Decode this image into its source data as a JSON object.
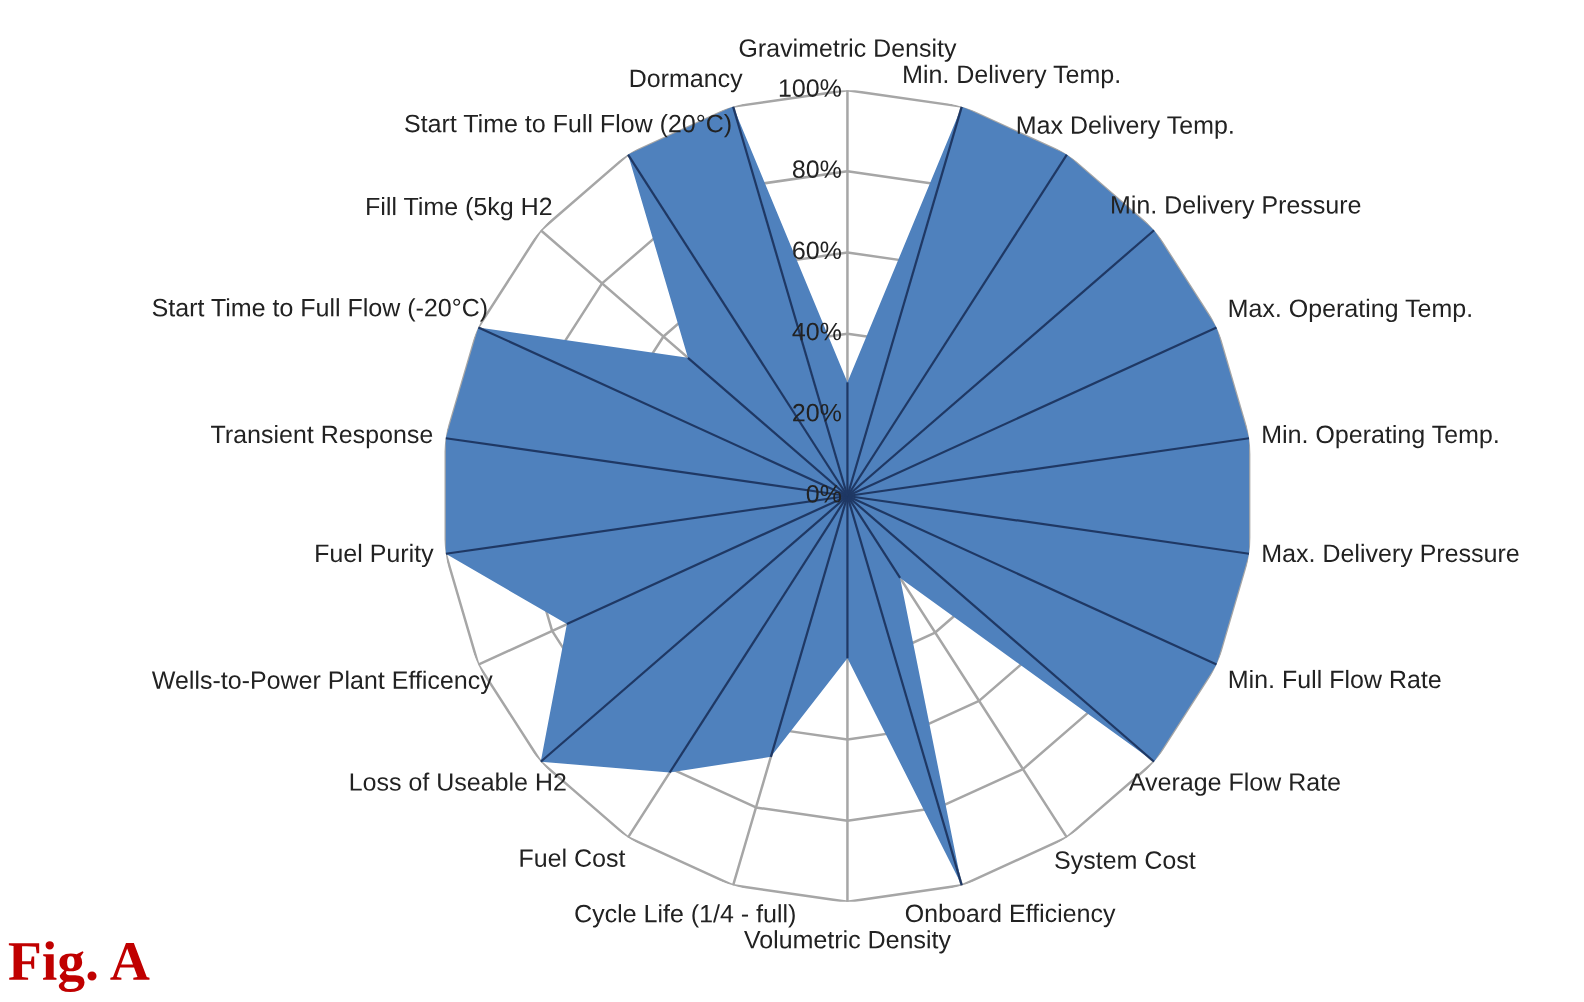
{
  "chart_data": {
    "type": "radar",
    "categories": [
      "Gravimetric Density",
      "Min. Delivery Temp.",
      "Max Delivery Temp.",
      "Min. Delivery Pressure",
      "Max. Operating Temp.",
      "Min. Operating Temp.",
      "Max. Delivery Pressure",
      "Min. Full Flow Rate",
      "Average Flow Rate",
      "System Cost",
      "Onboard Efficiency",
      "Volumetric Density",
      "Cycle Life (1/4 - full)",
      "Fuel Cost",
      "Loss of Useable H2",
      "Wells-to-Power Plant Efficency",
      "Fuel Purity",
      "Transient Response",
      "Start Time to Full Flow (-20°C)",
      "Fill Time (5kg H2",
      "Start Time to Full Flow (20°C)",
      "Dormancy"
    ],
    "series": [
      {
        "color": "#4f81bd",
        "values": [
          28,
          100,
          100,
          100,
          100,
          100,
          100,
          100,
          100,
          24,
          100,
          40,
          67,
          81,
          100,
          76,
          100,
          100,
          100,
          52,
          100,
          100
        ]
      }
    ],
    "ylim": [
      0,
      100
    ],
    "yticks": [
      {
        "value": 0,
        "label": "0%"
      },
      {
        "value": 20,
        "label": "20%"
      },
      {
        "value": 40,
        "label": "40%"
      },
      {
        "value": 60,
        "label": "60%"
      },
      {
        "value": 80,
        "label": "80%"
      },
      {
        "value": 100,
        "label": "100%"
      }
    ],
    "grid": true,
    "annotations": [
      "Fig. A"
    ]
  }
}
